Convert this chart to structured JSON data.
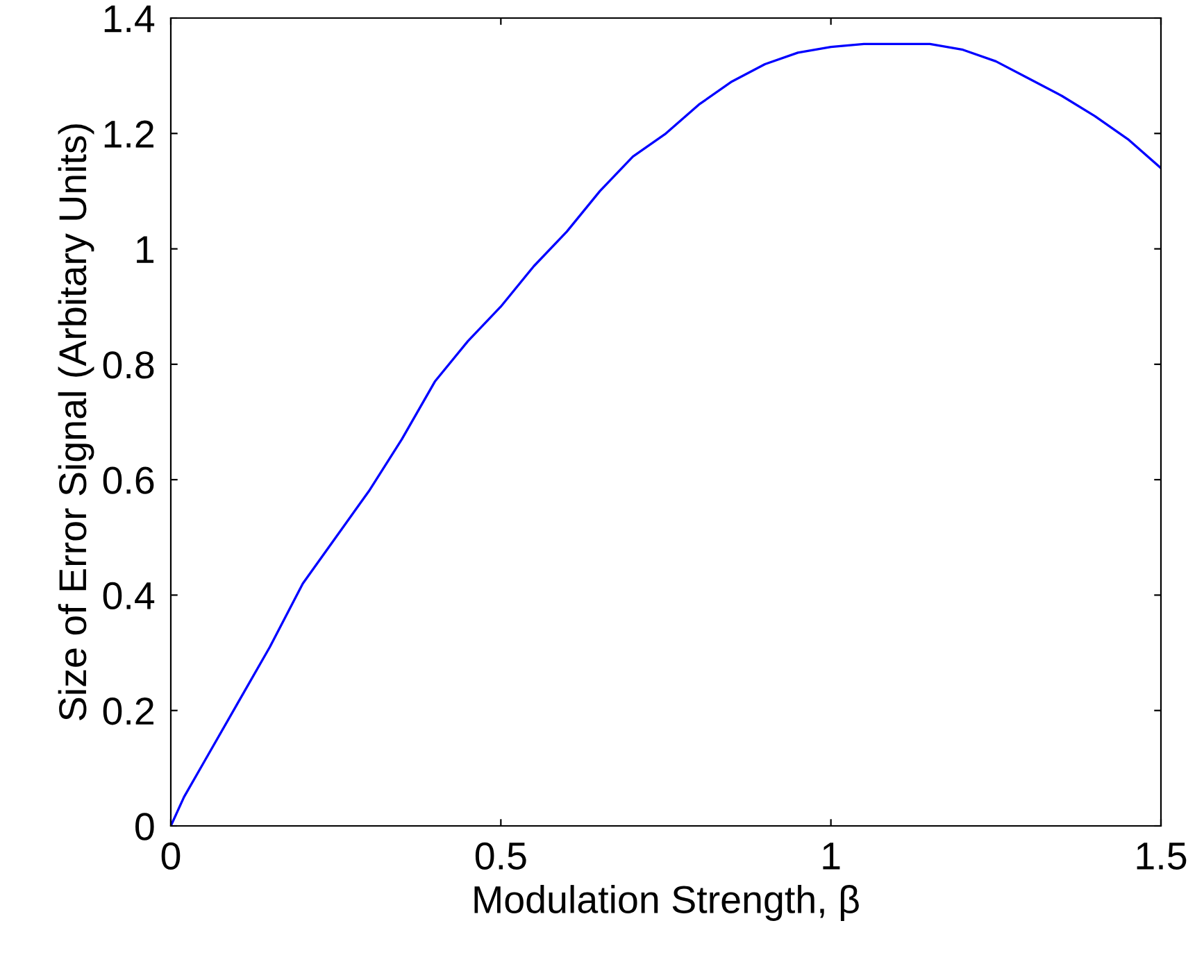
{
  "chart_data": {
    "type": "line",
    "xlabel": "Modulation Strength, β",
    "ylabel": "Size of Error Signal (Arbitary Units)",
    "xlim": [
      0,
      1.5
    ],
    "ylim": [
      0,
      1.4
    ],
    "xticks": [
      0,
      0.5,
      1,
      1.5
    ],
    "yticks": [
      0,
      0.2,
      0.4,
      0.6,
      0.8,
      1,
      1.2,
      1.4
    ],
    "grid": false,
    "legend": false,
    "series": [
      {
        "color": "#0000ff",
        "x": [
          0,
          0.02,
          0.05,
          0.1,
          0.15,
          0.2,
          0.25,
          0.3,
          0.35,
          0.4,
          0.45,
          0.5,
          0.55,
          0.6,
          0.65,
          0.7,
          0.75,
          0.8,
          0.85,
          0.9,
          0.95,
          1.0,
          1.05,
          1.1,
          1.15,
          1.2,
          1.25,
          1.3,
          1.35,
          1.4,
          1.45,
          1.5
        ],
        "values": [
          0,
          0.05,
          0.11,
          0.21,
          0.31,
          0.42,
          0.5,
          0.58,
          0.67,
          0.77,
          0.84,
          0.9,
          0.97,
          1.03,
          1.1,
          1.16,
          1.2,
          1.25,
          1.29,
          1.32,
          1.34,
          1.35,
          1.355,
          1.355,
          1.355,
          1.345,
          1.325,
          1.295,
          1.265,
          1.23,
          1.19,
          1.14
        ]
      }
    ]
  }
}
